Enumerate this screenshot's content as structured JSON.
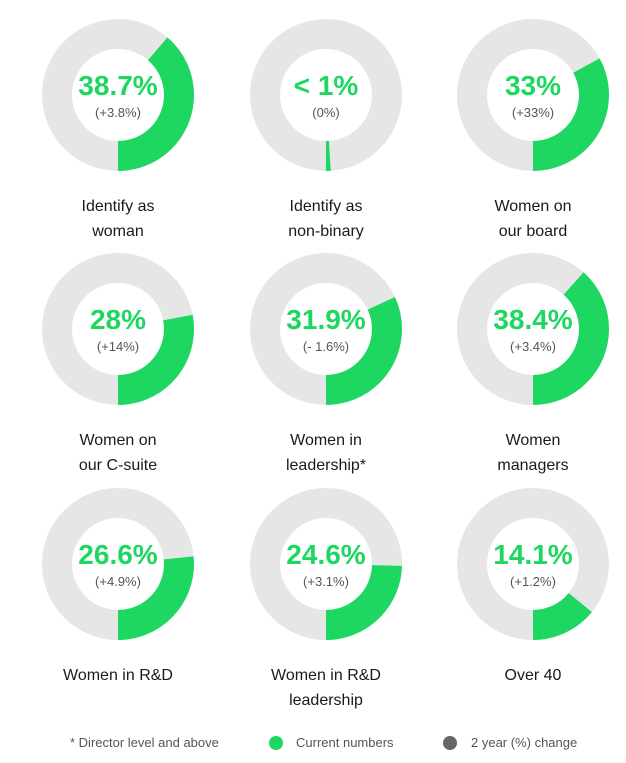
{
  "colors": {
    "current": "#1ed760",
    "track": "#e6e6e6",
    "change_dot": "#666666",
    "change_text": "#555555"
  },
  "chart_data": [
    {
      "type": "pie",
      "value": 38.7,
      "value_label": "38.7%",
      "change_label": "(+3.8%)",
      "label_lines": [
        "Identify as",
        "woman"
      ]
    },
    {
      "type": "pie",
      "value": 1,
      "value_label": "< 1%",
      "change_label": "(0%)",
      "label_lines": [
        "Identify as",
        "non-binary"
      ]
    },
    {
      "type": "pie",
      "value": 33,
      "value_label": "33%",
      "change_label": "(+33%)",
      "label_lines": [
        "Women on",
        "our board"
      ]
    },
    {
      "type": "pie",
      "value": 28,
      "value_label": "28%",
      "change_label": "(+14%)",
      "label_lines": [
        "Women on",
        "our C-suite"
      ]
    },
    {
      "type": "pie",
      "value": 31.9,
      "value_label": "31.9%",
      "change_label": "(- 1.6%)",
      "label_lines": [
        "Women in",
        "leadership*"
      ]
    },
    {
      "type": "pie",
      "value": 38.4,
      "value_label": "38.4%",
      "change_label": "(+3.4%)",
      "label_lines": [
        "Women",
        "managers"
      ]
    },
    {
      "type": "pie",
      "value": 26.6,
      "value_label": "26.6%",
      "change_label": "(+4.9%)",
      "label_lines": [
        "Women in R&D"
      ]
    },
    {
      "type": "pie",
      "value": 24.6,
      "value_label": "24.6%",
      "change_label": "(+3.1%)",
      "label_lines": [
        "Women in R&D",
        "leadership"
      ]
    },
    {
      "type": "pie",
      "value": 14.1,
      "value_label": "14.1%",
      "change_label": "(+1.2%)",
      "label_lines": [
        "Over 40"
      ]
    }
  ],
  "legend": {
    "footnote": "* Director level and above",
    "current": "Current numbers",
    "change": "2 year (%) change"
  }
}
